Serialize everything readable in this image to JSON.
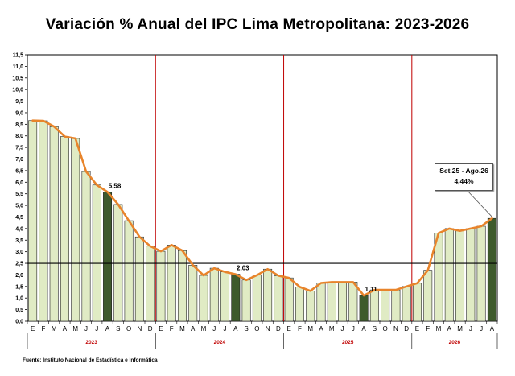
{
  "chart_data": {
    "type": "bar",
    "title": "Variación % Anual del IPC Lima Metropolitana:  2023-2026",
    "ylim": [
      0,
      11.5
    ],
    "yticks": [
      "0,0",
      "0,5",
      "1,0",
      "1,5",
      "2,0",
      "2,5",
      "3,0",
      "3,5",
      "4,0",
      "4,5",
      "5,0",
      "5,5",
      "6,0",
      "6,5",
      "7,0",
      "7,5",
      "8,0",
      "8,5",
      "9,0",
      "9,5",
      "10,0",
      "10,5",
      "11,0",
      "11,5"
    ],
    "categories": [
      "E",
      "F",
      "M",
      "A",
      "M",
      "J",
      "J",
      "A",
      "S",
      "O",
      "N",
      "D",
      "E",
      "F",
      "M",
      "A",
      "M",
      "J",
      "J",
      "A",
      "S",
      "O",
      "N",
      "D",
      "E",
      "F",
      "M",
      "A",
      "M",
      "J",
      "J",
      "A",
      "S",
      "O",
      "N",
      "D",
      "E",
      "F",
      "M",
      "A",
      "M",
      "J",
      "J",
      "A"
    ],
    "years": [
      "2023",
      "2024",
      "2025",
      "2026"
    ],
    "values": [
      8.66,
      8.65,
      8.4,
      7.97,
      7.89,
      6.46,
      5.88,
      5.58,
      5.04,
      4.34,
      3.64,
      3.24,
      3.02,
      3.29,
      3.05,
      2.42,
      1.98,
      2.29,
      2.13,
      2.03,
      1.78,
      1.99,
      2.25,
      1.97,
      1.87,
      1.48,
      1.31,
      1.65,
      1.69,
      1.69,
      1.69,
      1.11,
      1.35,
      1.35,
      1.35,
      1.5,
      1.64,
      2.2,
      3.8,
      4.0,
      3.9,
      4.0,
      4.1,
      4.44
    ],
    "highlighted_index": [
      7,
      19,
      31,
      43
    ],
    "data_labels": [
      {
        "index": 7,
        "text": "5,58"
      },
      {
        "index": 19,
        "text": "2,03"
      },
      {
        "index": 31,
        "text": "1,11"
      }
    ],
    "reference_line": 2.5,
    "annotation": {
      "line1": "Set.25 - Ago.26",
      "line2": "4,44%"
    },
    "colors": {
      "bar": "#e0ebc4",
      "bar_highlight": "#3e5a2c",
      "line": "#e8842b",
      "ref_line": "#000000",
      "year_divider": "#c00000"
    },
    "source": "Fuente: Instituto Nacional de Estadística e Informática"
  }
}
